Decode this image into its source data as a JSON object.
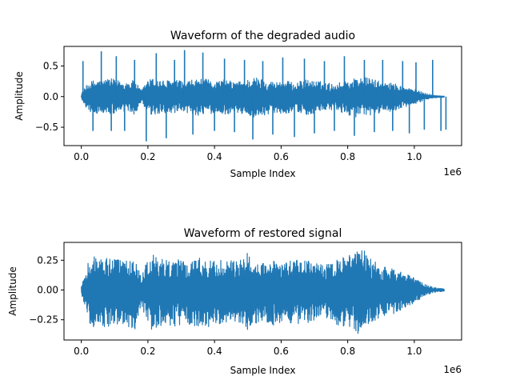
{
  "chart_data": [
    {
      "type": "line",
      "title": "Waveform of the degraded audio",
      "xlabel": "Sample Index",
      "ylabel": "Amplitude",
      "x_offset_text": "1e6",
      "xlim": [
        -52000,
        1142000
      ],
      "ylim": [
        -0.8,
        0.82
      ],
      "xticks": [
        0,
        0.2,
        0.4,
        0.6,
        0.8,
        1.0
      ],
      "xtick_labels": [
        "0.0",
        "0.2",
        "0.4",
        "0.6",
        "0.8",
        "1.0"
      ],
      "yticks": [
        0.5,
        0.0,
        -0.5
      ],
      "ytick_labels": [
        "0.5",
        "0.0",
        "−0.5"
      ],
      "grid": false,
      "color": "#1f77b4",
      "envelope": {
        "x": [
          0,
          20000,
          40000,
          60000,
          80000,
          100000,
          130000,
          160000,
          180000,
          200000,
          220000,
          250000,
          280000,
          310000,
          340000,
          370000,
          400000,
          430000,
          460000,
          490000,
          520000,
          550000,
          580000,
          610000,
          640000,
          670000,
          700000,
          730000,
          760000,
          790000,
          820000,
          850000,
          880000,
          910000,
          940000,
          970000,
          1000000,
          1030000,
          1060000,
          1090000
        ],
        "upper": [
          0.05,
          0.22,
          0.28,
          0.26,
          0.3,
          0.28,
          0.24,
          0.27,
          0.1,
          0.28,
          0.3,
          0.26,
          0.28,
          0.24,
          0.28,
          0.29,
          0.25,
          0.28,
          0.24,
          0.26,
          0.32,
          0.28,
          0.24,
          0.27,
          0.22,
          0.28,
          0.26,
          0.24,
          0.2,
          0.26,
          0.3,
          0.32,
          0.28,
          0.22,
          0.22,
          0.16,
          0.12,
          0.06,
          0.02,
          0.01
        ],
        "lower": [
          -0.05,
          -0.22,
          -0.3,
          -0.26,
          -0.3,
          -0.28,
          -0.26,
          -0.3,
          -0.1,
          -0.3,
          -0.32,
          -0.26,
          -0.3,
          -0.26,
          -0.3,
          -0.32,
          -0.26,
          -0.3,
          -0.25,
          -0.3,
          -0.34,
          -0.3,
          -0.26,
          -0.28,
          -0.24,
          -0.3,
          -0.28,
          -0.24,
          -0.22,
          -0.28,
          -0.33,
          -0.34,
          -0.3,
          -0.24,
          -0.24,
          -0.18,
          -0.13,
          -0.06,
          -0.02,
          -0.01
        ]
      },
      "spikes": {
        "x": [
          5000,
          35000,
          60000,
          90000,
          105000,
          130000,
          160000,
          195000,
          225000,
          255000,
          280000,
          310000,
          335000,
          365000,
          400000,
          430000,
          460000,
          490000,
          515000,
          545000,
          575000,
          605000,
          640000,
          670000,
          700000,
          730000,
          760000,
          790000,
          820000,
          850000,
          880000,
          905000,
          935000,
          965000,
          985000,
          1005000,
          1030000,
          1055000,
          1080000,
          1095000
        ],
        "y": [
          0.58,
          -0.56,
          0.74,
          -0.56,
          0.66,
          -0.56,
          0.6,
          -0.73,
          0.71,
          -0.68,
          0.6,
          0.76,
          -0.62,
          0.72,
          -0.56,
          0.62,
          -0.58,
          0.6,
          -0.7,
          0.58,
          -0.62,
          0.64,
          -0.66,
          0.62,
          -0.6,
          0.58,
          -0.56,
          0.66,
          -0.64,
          0.6,
          -0.58,
          0.6,
          -0.56,
          0.58,
          -0.6,
          0.56,
          -0.54,
          0.6,
          -0.56,
          -0.54
        ]
      }
    },
    {
      "type": "line",
      "title": "Waveform of restored signal",
      "xlabel": "Sample Index",
      "ylabel": "Amplitude",
      "x_offset_text": "1e6",
      "xlim": [
        -52000,
        1142000
      ],
      "ylim": [
        -0.42,
        0.4
      ],
      "xticks": [
        0,
        0.2,
        0.4,
        0.6,
        0.8,
        1.0
      ],
      "xtick_labels": [
        "0.0",
        "0.2",
        "0.4",
        "0.6",
        "0.8",
        "1.0"
      ],
      "yticks": [
        0.25,
        0.0,
        -0.25
      ],
      "ytick_labels": [
        "0.25",
        "0.00",
        "−0.25"
      ],
      "grid": false,
      "color": "#1f77b4",
      "envelope": {
        "x": [
          0,
          10000,
          20000,
          40000,
          60000,
          80000,
          100000,
          130000,
          160000,
          180000,
          200000,
          220000,
          250000,
          280000,
          310000,
          340000,
          370000,
          400000,
          430000,
          460000,
          490000,
          500000,
          520000,
          550000,
          580000,
          610000,
          640000,
          670000,
          700000,
          730000,
          760000,
          790000,
          820000,
          840000,
          860000,
          880000,
          910000,
          940000,
          970000,
          1000000,
          1030000,
          1060000,
          1090000
        ],
        "upper": [
          0.04,
          0.12,
          0.24,
          0.29,
          0.28,
          0.3,
          0.26,
          0.24,
          0.28,
          0.1,
          0.28,
          0.3,
          0.26,
          0.28,
          0.24,
          0.27,
          0.28,
          0.25,
          0.27,
          0.24,
          0.26,
          0.34,
          0.26,
          0.24,
          0.28,
          0.22,
          0.27,
          0.25,
          0.24,
          0.2,
          0.26,
          0.29,
          0.3,
          0.36,
          0.3,
          0.24,
          0.2,
          0.19,
          0.14,
          0.1,
          0.05,
          0.02,
          0.01
        ],
        "lower": [
          -0.04,
          -0.14,
          -0.26,
          -0.33,
          -0.3,
          -0.34,
          -0.3,
          -0.28,
          -0.35,
          -0.12,
          -0.32,
          -0.36,
          -0.28,
          -0.32,
          -0.28,
          -0.3,
          -0.33,
          -0.28,
          -0.3,
          -0.27,
          -0.3,
          -0.36,
          -0.3,
          -0.26,
          -0.3,
          -0.25,
          -0.3,
          -0.28,
          -0.26,
          -0.22,
          -0.28,
          -0.32,
          -0.33,
          -0.4,
          -0.32,
          -0.26,
          -0.22,
          -0.2,
          -0.15,
          -0.11,
          -0.05,
          -0.02,
          -0.01
        ]
      },
      "spikes": {
        "x": [],
        "y": []
      }
    }
  ]
}
